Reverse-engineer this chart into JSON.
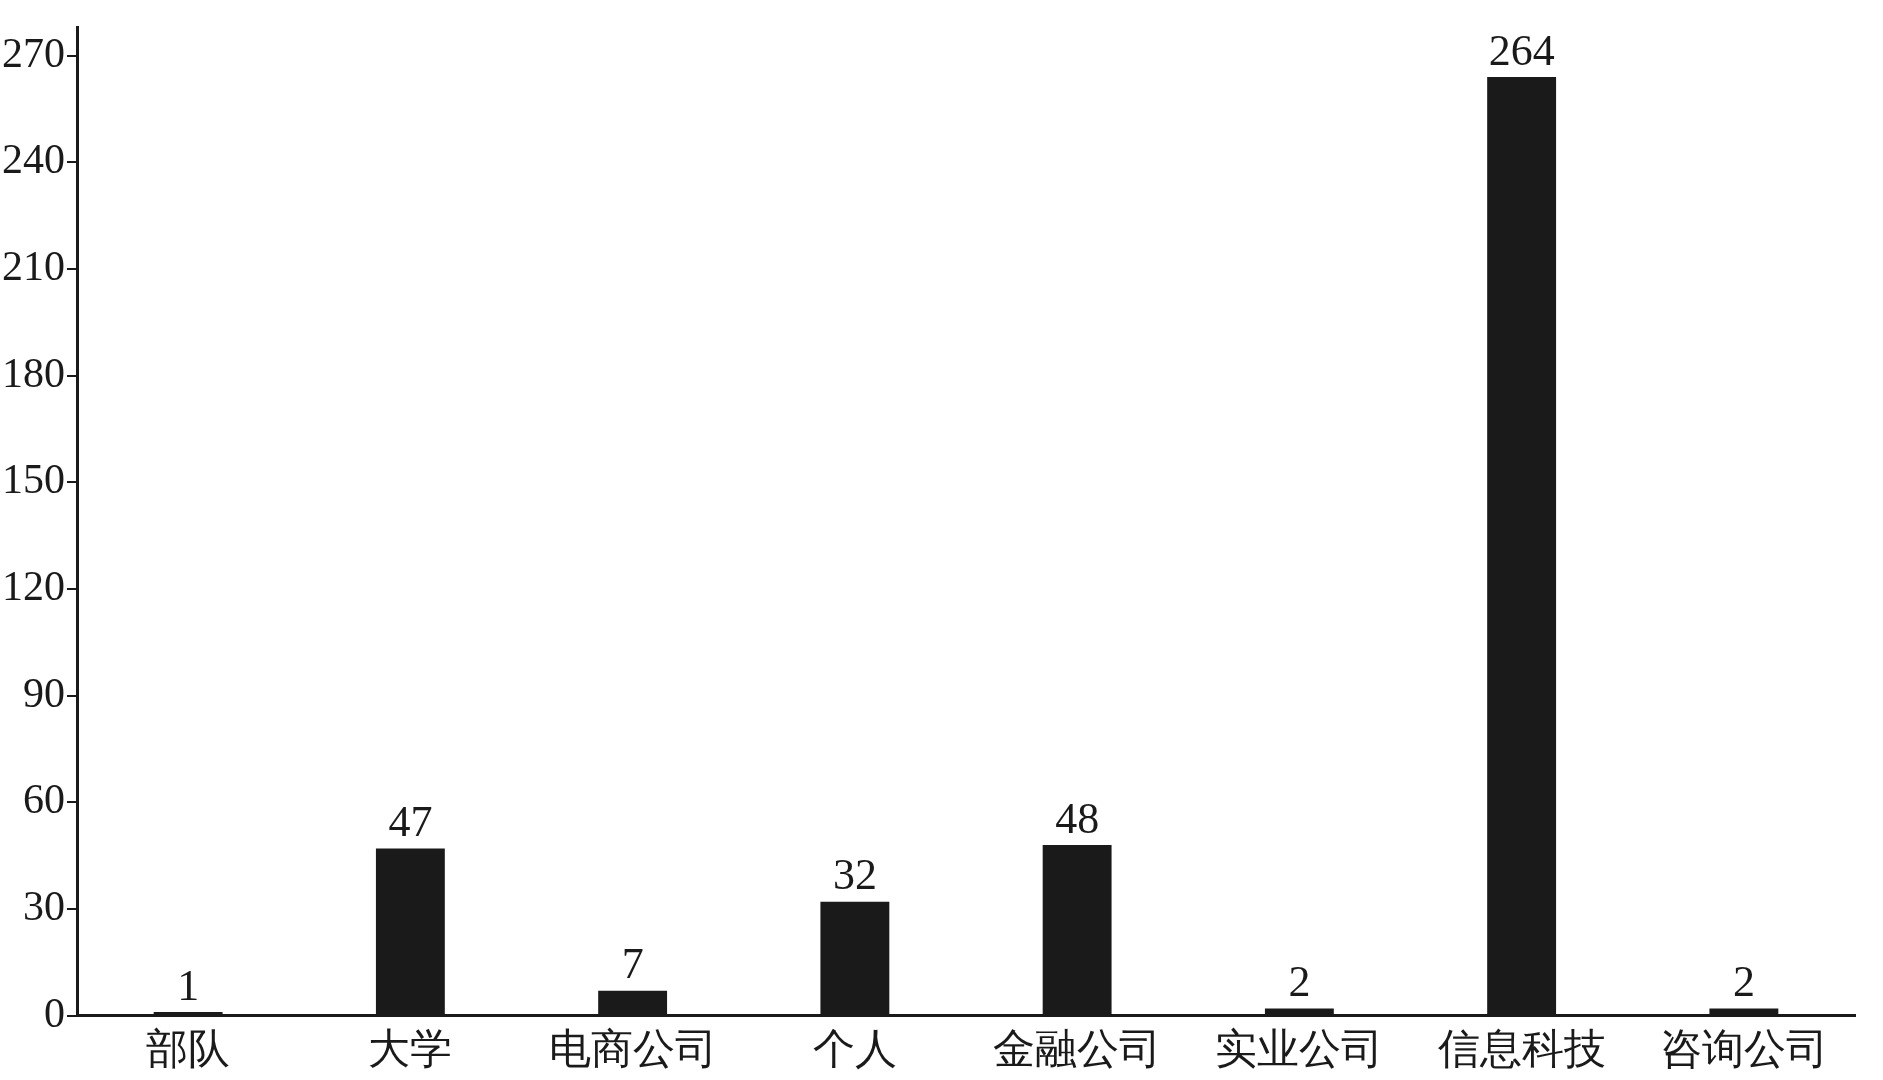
{
  "chart_data": {
    "type": "bar",
    "categories": [
      "部队",
      "大学",
      "电商公司",
      "个人",
      "金融公司",
      "实业公司",
      "信息科技",
      "咨询公司"
    ],
    "values": [
      1,
      47,
      7,
      32,
      48,
      2,
      264,
      2
    ],
    "color": "#1a1a1a",
    "ylim": [
      0,
      278
    ],
    "yticks": [
      0,
      30,
      60,
      90,
      120,
      150,
      180,
      210,
      240,
      270
    ],
    "grid": false,
    "legend": false,
    "data_labels": true
  }
}
